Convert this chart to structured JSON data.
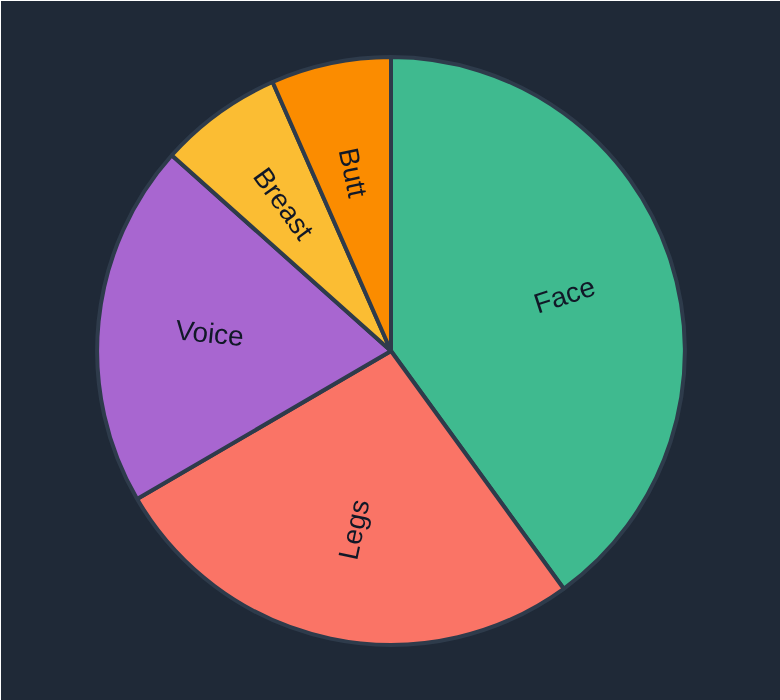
{
  "chart_data": {
    "type": "pie",
    "categories": [
      "Face",
      "Legs",
      "Voice",
      "Breast",
      "Butt"
    ],
    "values": [
      40,
      26.6,
      20,
      6.8,
      6.6
    ],
    "colors": [
      "#3fba8f",
      "#fa7466",
      "#a866d0",
      "#fbbd33",
      "#fb8c00"
    ]
  }
}
